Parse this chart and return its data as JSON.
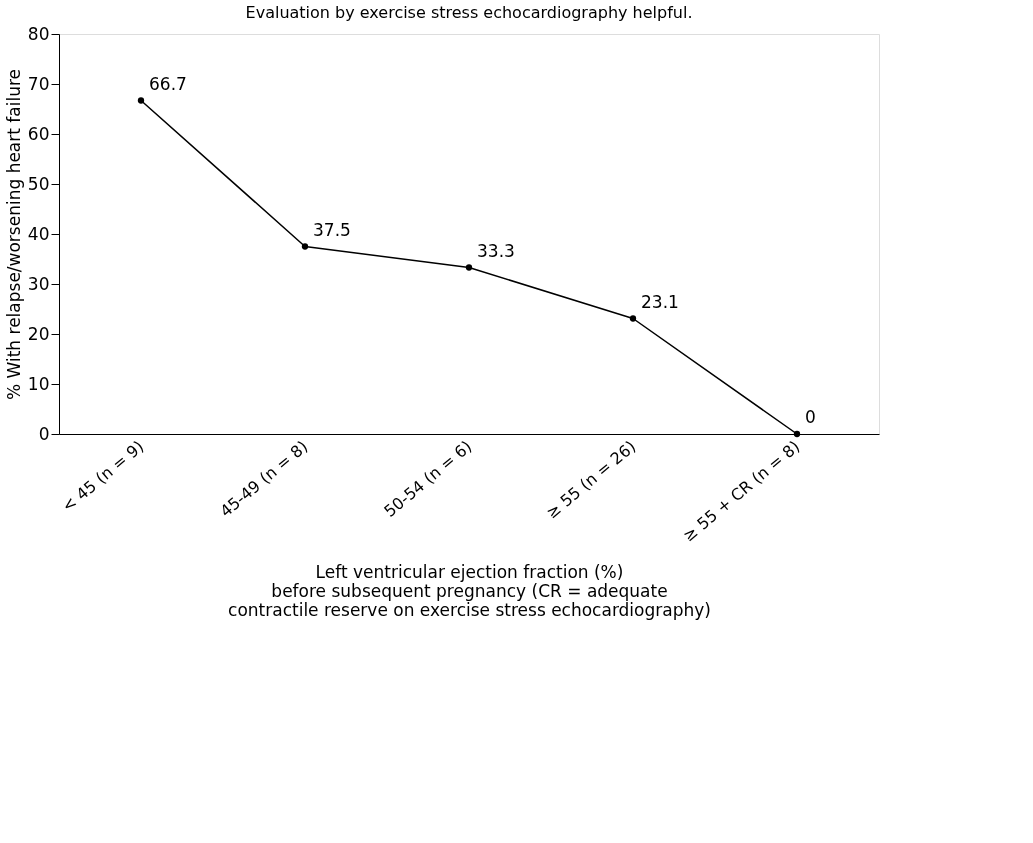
{
  "chart_data": {
    "type": "line",
    "title": "Evaluation by exercise stress echocardiography helpful.",
    "xlabel": "Left ventricular ejection fraction (%)\nbefore subsequent pregnancy (CR = adequate\ncontractile reserve on exercise stress echocardiography)",
    "ylabel": "% With relapse/worsening heart failure",
    "categories": [
      "< 45 (n = 9)",
      "45-49 (n = 8)",
      "50-54 (n = 6)",
      "≥ 55 (n = 26)",
      "≥ 55 + CR (n = 8)"
    ],
    "series": [
      {
        "color": "#000000",
        "values": [
          66.7,
          37.5,
          33.3,
          23.1,
          0
        ]
      }
    ],
    "ylim": [
      0,
      80
    ],
    "yticks": [
      0,
      10,
      20,
      30,
      40,
      50,
      60,
      70,
      80
    ],
    "marker": "circle",
    "line_style": "solid",
    "data_labels": true,
    "grid": false,
    "legend": false
  }
}
